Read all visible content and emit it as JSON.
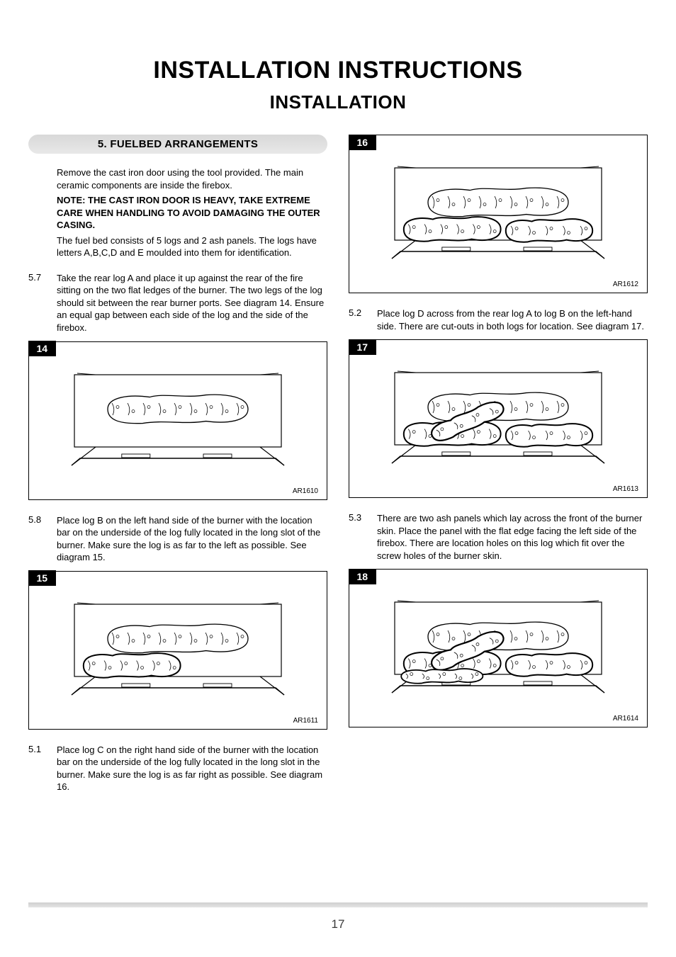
{
  "titles": {
    "main": "INSTALLATION INSTRUCTIONS",
    "sub": "INSTALLATION"
  },
  "section_header": "5. FUELBED ARRANGEMENTS",
  "intro": {
    "p1": "Remove the cast iron door using the tool provided. The main ceramic components are inside the firebox.",
    "note": "NOTE: THE CAST IRON DOOR IS HEAVY, TAKE EXTREME CARE WHEN HANDLING TO AVOID DAMAGING THE OUTER CASING.",
    "p2": "The fuel bed consists of 5 logs and 2 ash panels. The logs have letters A,B,C,D and E moulded into them for identification."
  },
  "steps": {
    "s57": {
      "num": "5.7",
      "text": "Take the rear log A and place it up against the rear of the fire sitting on the two flat ledges of the burner. The two legs of the log should sit between the rear burner ports. See diagram 14. Ensure an equal gap between each side of the log and the side of the firebox."
    },
    "s58": {
      "num": "5.8",
      "text": "Place log B on the left hand side of the burner with the location bar on the underside of the log fully located in the long slot of the burner. Make sure the log is as far to the left as possible. See diagram 15."
    },
    "s51": {
      "num": "5.1",
      "text": "Place log C on the right hand side of the burner with the location bar on the underside of the log fully located in the long slot in the burner. Make sure the log is as far right as possible. See diagram 16."
    },
    "s52": {
      "num": "5.2",
      "text": "Place log D across from the rear log A to log B on the left-hand side. There are cut-outs in both logs for location. See diagram 17."
    },
    "s53": {
      "num": "5.3",
      "text": "There are two ash panels which lay across the front of the burner skin. Place the panel with the flat edge facing the left side of the firebox. There are location holes on this log which fit over the screw holes of the burner skin."
    }
  },
  "figures": {
    "f14": {
      "num": "14",
      "code": "AR1610",
      "variant": 1
    },
    "f15": {
      "num": "15",
      "code": "AR1611",
      "variant": 2
    },
    "f16": {
      "num": "16",
      "code": "AR1612",
      "variant": 3
    },
    "f17": {
      "num": "17",
      "code": "AR1613",
      "variant": 4
    },
    "f18": {
      "num": "18",
      "code": "AR1614",
      "variant": 5
    }
  },
  "page_number": "17",
  "style": {
    "page_bg": "#ffffff",
    "text_color": "#000000",
    "header_gradient_top": "#d8d8d8",
    "header_gradient_bottom": "#e8e8e8",
    "figure_border": "#000000",
    "figure_num_bg": "#000000",
    "figure_num_fg": "#ffffff",
    "footer_bar_color": "#d8d8d8",
    "divider_color": "#cccccc",
    "title_fontsize": 34,
    "subtitle_fontsize": 26,
    "body_fontsize": 13,
    "figure_stroke": "#000000",
    "figure_fill": "#ffffff",
    "figure_width": 360,
    "figure_height": 170
  }
}
